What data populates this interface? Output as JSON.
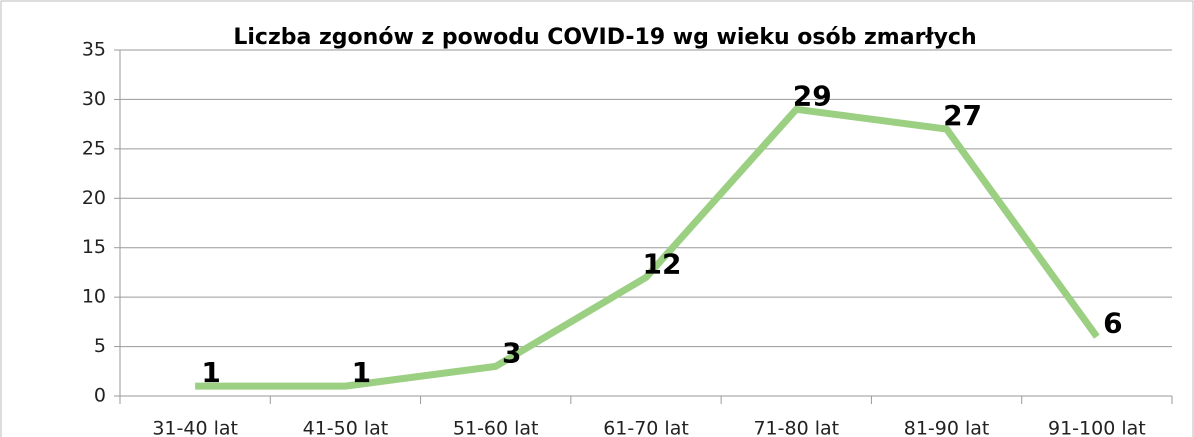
{
  "chart_data": {
    "type": "line",
    "title": "Liczba zgonów z powodu COVID-19 wg wieku osób zmarłych",
    "categories": [
      "31-40 lat",
      "41-50 lat",
      "51-60 lat",
      "61-70 lat",
      "71-80 lat",
      "81-90 lat",
      "91-100 lat"
    ],
    "series": [
      {
        "name": "Liczba zgonów",
        "color": "#9bcf82",
        "values": [
          1,
          1,
          3,
          12,
          29,
          27,
          6
        ]
      }
    ],
    "ylim": [
      0,
      35
    ],
    "yticks": [
      0,
      5,
      10,
      15,
      20,
      25,
      30,
      35
    ],
    "grid": true
  }
}
